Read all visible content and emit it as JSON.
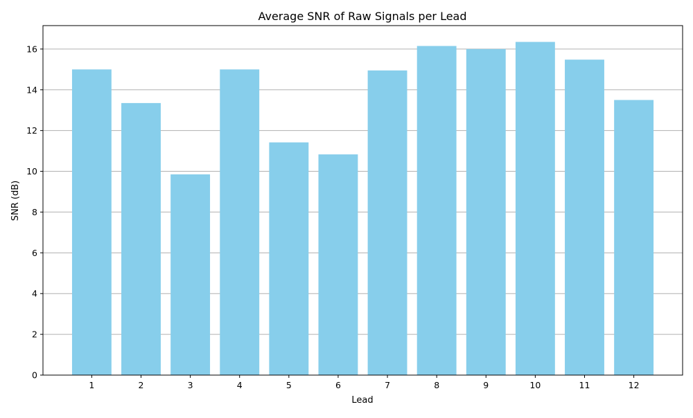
{
  "chart_data": {
    "type": "bar",
    "title": "Average SNR of Raw Signals per Lead",
    "xlabel": "Lead",
    "ylabel": "SNR (dB)",
    "categories": [
      "1",
      "2",
      "3",
      "4",
      "5",
      "6",
      "7",
      "8",
      "9",
      "10",
      "11",
      "12"
    ],
    "values": [
      15.0,
      13.35,
      9.85,
      15.0,
      11.42,
      10.83,
      14.95,
      16.15,
      16.0,
      16.35,
      15.48,
      13.5
    ],
    "ylim": [
      0,
      17.15
    ],
    "yticks": [
      0,
      2,
      4,
      6,
      8,
      10,
      12,
      14,
      16
    ],
    "grid": {
      "axis": "y",
      "on": true
    },
    "colors": {
      "bar": "#87ceeb",
      "grid": "#b0b0b0",
      "axis": "#000000"
    }
  }
}
